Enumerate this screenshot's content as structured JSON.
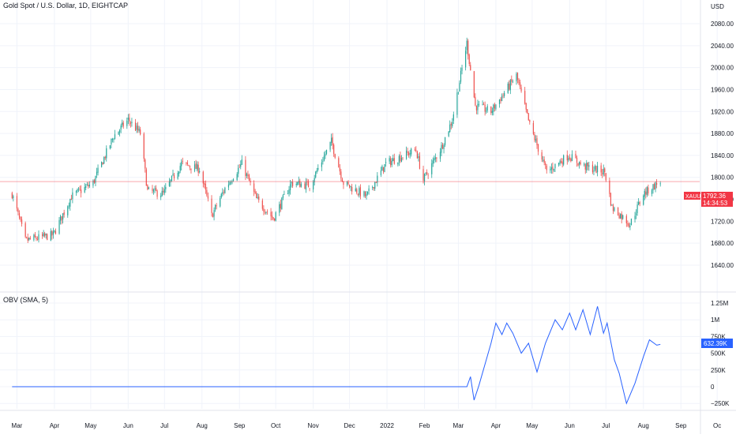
{
  "header": {
    "title": "Gold Spot / U.S. Dollar, 1D, EIGHTCAP",
    "currency": "USD"
  },
  "price_pane": {
    "symbol_tag": "XAUUSD",
    "last_price": "1792.36",
    "countdown": "14:34:53",
    "y_ticks": [
      "2080.00",
      "2040.00",
      "2000.00",
      "1960.00",
      "1920.00",
      "1880.00",
      "1840.00",
      "1800.00",
      "1760.00",
      "1720.00",
      "1680.00",
      "1640.00"
    ]
  },
  "obv_pane": {
    "title": "OBV (SMA, 5)",
    "last_value": "632.39K",
    "y_ticks": [
      "1.25M",
      "1M",
      "750K",
      "500K",
      "250K",
      "0",
      "−250K"
    ]
  },
  "x_ticks": [
    "Mar",
    "Apr",
    "May",
    "Jun",
    "Jul",
    "Aug",
    "Sep",
    "Oct",
    "Nov",
    "Dec",
    "2022",
    "Feb",
    "Mar",
    "Apr",
    "May",
    "Jun",
    "Jul",
    "Aug",
    "Sep",
    "Oc"
  ],
  "colors": {
    "up": "#26a69a",
    "down": "#ef5350",
    "price_line": "#f23645",
    "obv_line": "#2962ff",
    "obv_tag": "#2962ff",
    "grid": "#f0f3fa"
  },
  "chart_data": [
    {
      "type": "candlestick",
      "title": "Gold Spot / U.S. Dollar, 1D, EIGHTCAP",
      "ylabel": "USD",
      "ylim": [
        1640,
        2080
      ],
      "x_range": [
        "2021-03",
        "2022-10"
      ],
      "current_value": 1792.36,
      "grid": true,
      "approx_close_path": [
        {
          "date": "2021-02-25",
          "close": 1770
        },
        {
          "date": "2021-03-08",
          "close": 1685
        },
        {
          "date": "2021-03-31",
          "close": 1695
        },
        {
          "date": "2021-04-15",
          "close": 1765
        },
        {
          "date": "2021-05-03",
          "close": 1790
        },
        {
          "date": "2021-05-20",
          "close": 1875
        },
        {
          "date": "2021-06-01",
          "close": 1905
        },
        {
          "date": "2021-06-11",
          "close": 1880
        },
        {
          "date": "2021-06-17",
          "close": 1775
        },
        {
          "date": "2021-06-30",
          "close": 1770
        },
        {
          "date": "2021-07-15",
          "close": 1825
        },
        {
          "date": "2021-07-30",
          "close": 1815
        },
        {
          "date": "2021-08-09",
          "close": 1730
        },
        {
          "date": "2021-08-20",
          "close": 1780
        },
        {
          "date": "2021-09-03",
          "close": 1825
        },
        {
          "date": "2021-09-15",
          "close": 1760
        },
        {
          "date": "2021-09-29",
          "close": 1725
        },
        {
          "date": "2021-10-14",
          "close": 1790
        },
        {
          "date": "2021-10-29",
          "close": 1785
        },
        {
          "date": "2021-11-16",
          "close": 1865
        },
        {
          "date": "2021-11-26",
          "close": 1790
        },
        {
          "date": "2021-12-15",
          "close": 1765
        },
        {
          "date": "2021-12-31",
          "close": 1825
        },
        {
          "date": "2022-01-25",
          "close": 1850
        },
        {
          "date": "2022-01-31",
          "close": 1795
        },
        {
          "date": "2022-02-15",
          "close": 1855
        },
        {
          "date": "2022-02-24",
          "close": 1905
        },
        {
          "date": "2022-03-08",
          "close": 2045
        },
        {
          "date": "2022-03-15",
          "close": 1930
        },
        {
          "date": "2022-03-28",
          "close": 1920
        },
        {
          "date": "2022-04-18",
          "close": 1985
        },
        {
          "date": "2022-04-29",
          "close": 1895
        },
        {
          "date": "2022-05-13",
          "close": 1810
        },
        {
          "date": "2022-05-31",
          "close": 1840
        },
        {
          "date": "2022-06-13",
          "close": 1820
        },
        {
          "date": "2022-06-30",
          "close": 1810
        },
        {
          "date": "2022-07-06",
          "close": 1745
        },
        {
          "date": "2022-07-21",
          "close": 1715
        },
        {
          "date": "2022-08-01",
          "close": 1770
        },
        {
          "date": "2022-08-15",
          "close": 1792.36
        }
      ]
    },
    {
      "type": "line",
      "title": "OBV (SMA, 5)",
      "ylim": [
        -250000,
        1250000
      ],
      "current_value": 632390,
      "series": [
        {
          "name": "OBV",
          "points": [
            {
              "date": "2021-02-25",
              "value": 0
            },
            {
              "date": "2022-03-08",
              "value": 0
            },
            {
              "date": "2022-03-11",
              "value": 150000
            },
            {
              "date": "2022-03-14",
              "value": -200000
            },
            {
              "date": "2022-03-18",
              "value": 20000
            },
            {
              "date": "2022-03-28",
              "value": 650000
            },
            {
              "date": "2022-04-01",
              "value": 950000
            },
            {
              "date": "2022-04-06",
              "value": 780000
            },
            {
              "date": "2022-04-10",
              "value": 950000
            },
            {
              "date": "2022-04-15",
              "value": 800000
            },
            {
              "date": "2022-04-22",
              "value": 500000
            },
            {
              "date": "2022-04-28",
              "value": 650000
            },
            {
              "date": "2022-05-05",
              "value": 220000
            },
            {
              "date": "2022-05-12",
              "value": 650000
            },
            {
              "date": "2022-05-20",
              "value": 1000000
            },
            {
              "date": "2022-05-26",
              "value": 850000
            },
            {
              "date": "2022-06-01",
              "value": 1100000
            },
            {
              "date": "2022-06-06",
              "value": 850000
            },
            {
              "date": "2022-06-12",
              "value": 1150000
            },
            {
              "date": "2022-06-18",
              "value": 780000
            },
            {
              "date": "2022-06-24",
              "value": 1200000
            },
            {
              "date": "2022-06-29",
              "value": 800000
            },
            {
              "date": "2022-07-02",
              "value": 950000
            },
            {
              "date": "2022-07-08",
              "value": 400000
            },
            {
              "date": "2022-07-12",
              "value": 200000
            },
            {
              "date": "2022-07-18",
              "value": -250000
            },
            {
              "date": "2022-07-25",
              "value": 50000
            },
            {
              "date": "2022-08-01",
              "value": 450000
            },
            {
              "date": "2022-08-06",
              "value": 700000
            },
            {
              "date": "2022-08-12",
              "value": 620000
            },
            {
              "date": "2022-08-15",
              "value": 632390
            }
          ]
        }
      ]
    }
  ]
}
